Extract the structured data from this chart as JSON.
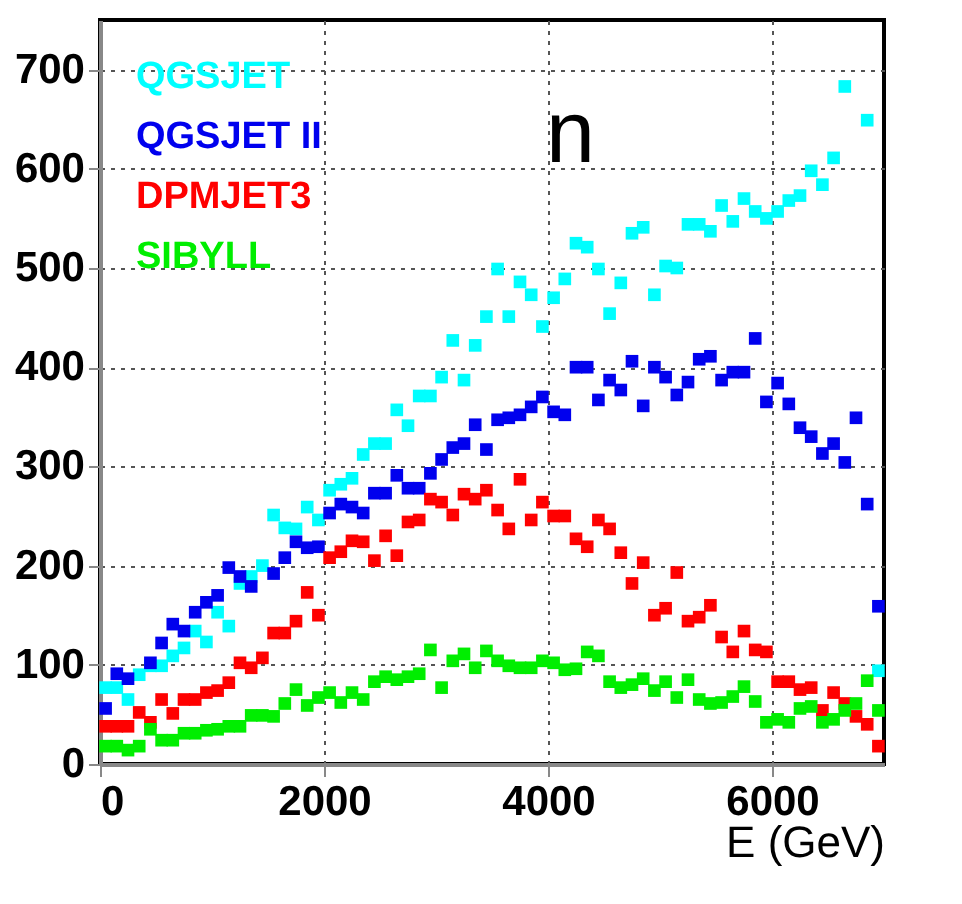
{
  "chart_data": {
    "type": "scatter",
    "xlabel": "E (GeV)",
    "annotations": [
      "n"
    ],
    "x": [
      50,
      150,
      250,
      350,
      450,
      550,
      650,
      750,
      850,
      950,
      1050,
      1150,
      1250,
      1350,
      1450,
      1550,
      1650,
      1750,
      1850,
      1950,
      2050,
      2150,
      2250,
      2350,
      2450,
      2550,
      2650,
      2750,
      2850,
      2950,
      3050,
      3150,
      3250,
      3350,
      3450,
      3550,
      3650,
      3750,
      3850,
      3950,
      4050,
      4150,
      4250,
      4350,
      4450,
      4550,
      4650,
      4750,
      4850,
      4950,
      5050,
      5150,
      5250,
      5350,
      5450,
      5550,
      5650,
      5750,
      5850,
      5950,
      6050,
      6150,
      6250,
      6350,
      6450,
      6550,
      6650,
      6750,
      6850,
      6950
    ],
    "series": [
      {
        "name": "QGSJET",
        "color": "#00ffff",
        "values": [
          77,
          77,
          65,
          90,
          99,
          99,
          109,
          117,
          134,
          123,
          153,
          139,
          182,
          189,
          200,
          251,
          238,
          237,
          259,
          246,
          276,
          282,
          288,
          312,
          323,
          323,
          357,
          341,
          371,
          371,
          390,
          427,
          387,
          422,
          451,
          499,
          451,
          486,
          473,
          441,
          470,
          489,
          525,
          521,
          499,
          454,
          485,
          535,
          541,
          473,
          502,
          500,
          544,
          544,
          537,
          563,
          547,
          570,
          557,
          550,
          557,
          568,
          573,
          598,
          584,
          611,
          683,
          null,
          649,
          94
        ]
      },
      {
        "name": "QGSJET II",
        "color": "#0000ee",
        "values": [
          56,
          91,
          86,
          null,
          102,
          122,
          141,
          134,
          153,
          163,
          170,
          198,
          189,
          179,
          null,
          192,
          208,
          224,
          218,
          219,
          253,
          262,
          259,
          253,
          273,
          273,
          291,
          278,
          278,
          293,
          307,
          319,
          323,
          342,
          317,
          347,
          349,
          352,
          360,
          370,
          355,
          352,
          400,
          400,
          367,
          387,
          377,
          406,
          361,
          400,
          390,
          372,
          385,
          408,
          411,
          387,
          395,
          395,
          429,
          365,
          384,
          363,
          339,
          330,
          313,
          323,
          304,
          349,
          262,
          159
        ]
      },
      {
        "name": "DPMJET3",
        "color": "#ff0000",
        "values": [
          38,
          38,
          38,
          52,
          42,
          65,
          51,
          65,
          65,
          72,
          74,
          82,
          102,
          97,
          107,
          132,
          132,
          144,
          173,
          150,
          208,
          214,
          225,
          224,
          205,
          230,
          210,
          244,
          246,
          267,
          264,
          251,
          272,
          267,
          276,
          256,
          237,
          287,
          246,
          264,
          250,
          250,
          227,
          219,
          246,
          237,
          213,
          182,
          203,
          150,
          157,
          193,
          144,
          148,
          160,
          128,
          113,
          134,
          115,
          113,
          83,
          83,
          75,
          77,
          54,
          72,
          61,
          48,
          40,
          18
        ]
      },
      {
        "name": "SIBYLL",
        "color": "#00ee00",
        "values": [
          18,
          18,
          14,
          18,
          35,
          24,
          24,
          31,
          31,
          34,
          35,
          38,
          38,
          49,
          49,
          48,
          61,
          75,
          59,
          67,
          72,
          62,
          72,
          65,
          83,
          88,
          85,
          88,
          91,
          115,
          77,
          104,
          111,
          97,
          114,
          104,
          99,
          97,
          97,
          104,
          102,
          95,
          96,
          113,
          109,
          83,
          77,
          80,
          86,
          74,
          83,
          67,
          85,
          65,
          61,
          62,
          68,
          78,
          63,
          42,
          45,
          42,
          56,
          58,
          42,
          45,
          54,
          61,
          84,
          54
        ]
      }
    ],
    "xlim": [
      0,
      7000
    ],
    "ylim": [
      0,
      750
    ],
    "xticks": [
      0,
      2000,
      4000,
      6000
    ],
    "yticks": [
      0,
      100,
      200,
      300,
      400,
      500,
      600,
      700
    ],
    "grid": true,
    "legend": "top left",
    "marker": "square"
  }
}
